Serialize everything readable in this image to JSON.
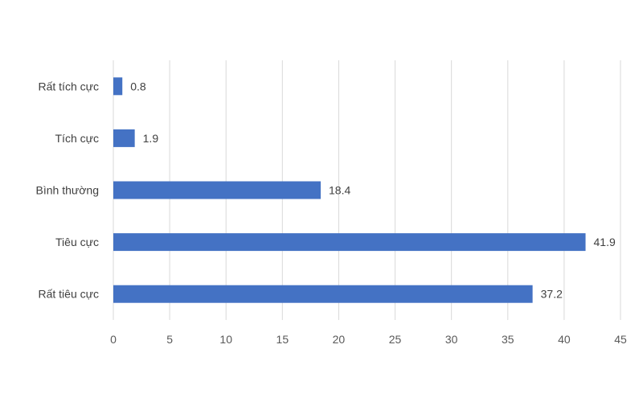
{
  "chart_data": {
    "type": "bar",
    "orientation": "horizontal",
    "categories": [
      "Rất tích cực",
      "Tích cực",
      "Bình thường",
      "Tiêu cực",
      "Rất tiêu cực"
    ],
    "values": [
      0.8,
      1.9,
      18.4,
      41.9,
      37.2
    ],
    "data_labels": [
      "0.8",
      "1.9",
      "18.4",
      "41.9",
      "37.2"
    ],
    "x_ticks": [
      "0",
      "5",
      "10",
      "15",
      "20",
      "25",
      "30",
      "35",
      "40",
      "45"
    ],
    "xlim": [
      0,
      45
    ],
    "grid": "vertical",
    "legend": "none",
    "bar_color": "#4472c4",
    "title": "",
    "xlabel": "",
    "ylabel": ""
  }
}
